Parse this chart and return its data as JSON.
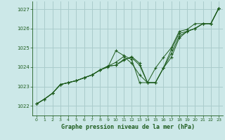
{
  "title": "Graphe pression niveau de la mer (hPa)",
  "bg_color": "#cce8e8",
  "grid_color": "#aacccc",
  "line_color": "#1e5c1e",
  "marker_color": "#1e5c1e",
  "xlim": [
    -0.5,
    23.5
  ],
  "ylim": [
    1021.5,
    1027.4
  ],
  "yticks": [
    1022,
    1023,
    1024,
    1025,
    1026,
    1027
  ],
  "xticks": [
    0,
    1,
    2,
    3,
    4,
    5,
    6,
    7,
    8,
    9,
    10,
    11,
    12,
    13,
    14,
    15,
    16,
    17,
    18,
    19,
    20,
    21,
    22,
    23
  ],
  "series": [
    [
      1022.1,
      1022.35,
      1022.65,
      1023.1,
      1023.2,
      1023.3,
      1023.45,
      1023.6,
      1023.85,
      1024.0,
      1024.85,
      1024.6,
      1024.4,
      1023.2,
      1023.2,
      1023.95,
      1024.5,
      1025.0,
      1025.85,
      1025.95,
      1026.25,
      1026.25,
      1026.25,
      1027.05
    ],
    [
      1022.1,
      1022.35,
      1022.65,
      1023.1,
      1023.2,
      1023.3,
      1023.45,
      1023.6,
      1023.85,
      1024.05,
      1024.25,
      1024.55,
      1024.2,
      1023.6,
      1023.2,
      1023.2,
      1023.95,
      1024.5,
      1025.5,
      1025.85,
      1026.0,
      1026.25,
      1026.25,
      1027.05
    ],
    [
      1022.1,
      1022.35,
      1022.65,
      1023.1,
      1023.2,
      1023.3,
      1023.45,
      1023.6,
      1023.85,
      1024.05,
      1024.1,
      1024.4,
      1024.5,
      1024.1,
      1023.2,
      1023.2,
      1023.95,
      1024.7,
      1025.6,
      1025.85,
      1026.0,
      1026.25,
      1026.25,
      1027.05
    ],
    [
      1022.1,
      1022.35,
      1022.65,
      1023.1,
      1023.2,
      1023.3,
      1023.45,
      1023.6,
      1023.85,
      1024.05,
      1024.1,
      1024.35,
      1024.55,
      1024.2,
      1023.2,
      1023.2,
      1023.95,
      1024.9,
      1025.75,
      1025.85,
      1026.0,
      1026.25,
      1026.25,
      1027.05
    ]
  ]
}
